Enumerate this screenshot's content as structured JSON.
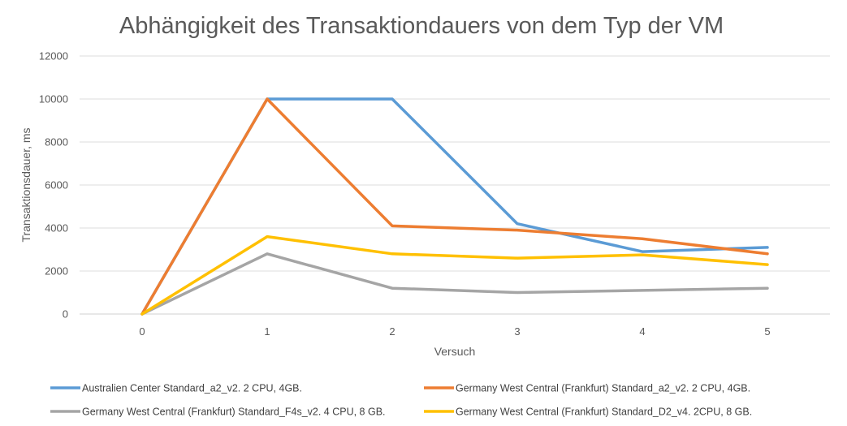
{
  "chart_data": {
    "type": "line",
    "title": "Abhängigkeit des Transaktiondauers von dem Typ der VM",
    "xlabel": "Versuch",
    "ylabel": "Transaktionsdauer, ms",
    "x": [
      0,
      1,
      2,
      3,
      4,
      5
    ],
    "ylim": [
      0,
      12000
    ],
    "yticks": [
      0,
      2000,
      4000,
      6000,
      8000,
      10000,
      12000
    ],
    "grid": true,
    "legend_position": "bottom",
    "series": [
      {
        "name": "Australien Center Standard_a2_v2. 2 CPU, 4GB.",
        "color": "#5B9BD5",
        "values": [
          0,
          10000,
          10000,
          4200,
          2900,
          3100
        ]
      },
      {
        "name": "Germany West Central (Frankfurt) Standard_a2_v2. 2 CPU, 4GB.",
        "color": "#ED7D31",
        "values": [
          0,
          10000,
          4100,
          3900,
          3500,
          2800
        ]
      },
      {
        "name": "Germany West Central (Frankfurt)  Standard_F4s_v2. 4 CPU, 8 GB.",
        "color": "#A5A5A5",
        "values": [
          0,
          2800,
          1200,
          1000,
          1100,
          1200
        ]
      },
      {
        "name": "Germany West Central (Frankfurt)  Standard_D2_v4. 2CPU, 8 GB.",
        "color": "#FFC000",
        "values": [
          0,
          3600,
          2800,
          2600,
          2750,
          2300
        ]
      }
    ]
  }
}
